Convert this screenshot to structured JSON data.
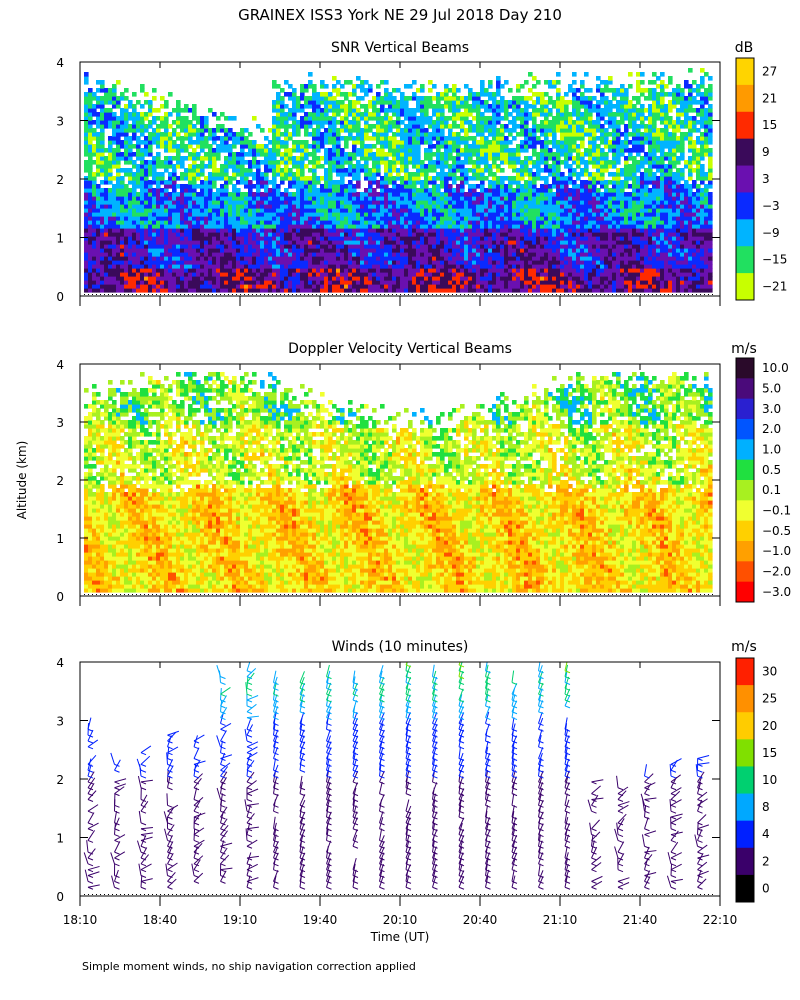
{
  "figure": {
    "title": "GRAINEX ISS3 York NE  29 Jul 2018 Day 210",
    "ylabel": "Altitude (km)",
    "xlabel": "Time (UT)",
    "footnote": "Simple moment winds, no ship navigation correction applied"
  },
  "chart_data": [
    {
      "type": "heatmap",
      "title": "SNR Vertical Beams",
      "xlabel": "Time (UT)",
      "ylabel": "Altitude (km)",
      "x_ticks": [
        "18:10",
        "18:40",
        "19:10",
        "19:40",
        "20:10",
        "20:40",
        "21:10",
        "21:40",
        "22:10"
      ],
      "y_ticks": [
        "0",
        "1",
        "2",
        "3",
        "4"
      ],
      "ylim": [
        0,
        4
      ],
      "colorbar": {
        "unit": "dB",
        "labels": [
          "27",
          "21",
          "15",
          "9",
          "3",
          "−3",
          "−9",
          "−15",
          "−21"
        ],
        "colors": [
          "#ffd400",
          "#ff9a00",
          "#ff2a00",
          "#3a0a5a",
          "#6a10b0",
          "#0a2aff",
          "#00b4ff",
          "#21e060",
          "#c8ff00"
        ]
      }
    },
    {
      "type": "heatmap",
      "title": "Doppler Velocity Vertical Beams",
      "xlabel": "Time (UT)",
      "ylabel": "Altitude (km)",
      "x_ticks": [
        "18:10",
        "18:40",
        "19:10",
        "19:40",
        "20:10",
        "20:40",
        "21:10",
        "21:40",
        "22:10"
      ],
      "y_ticks": [
        "0",
        "1",
        "2",
        "3",
        "4"
      ],
      "ylim": [
        0,
        4
      ],
      "colorbar": {
        "unit": "m/s",
        "labels": [
          "10.0",
          "5.0",
          "3.0",
          "2.0",
          "1.0",
          "0.5",
          "0.1",
          "−0.1",
          "−0.5",
          "−1.0",
          "−2.0",
          "−3.0"
        ],
        "colors": [
          "#2a0a2a",
          "#4a0a7a",
          "#2a20d0",
          "#0055ff",
          "#00b0ff",
          "#20e040",
          "#a8f020",
          "#f0ff30",
          "#ffd000",
          "#ffa000",
          "#ff5000",
          "#ff0000"
        ]
      }
    },
    {
      "type": "scatter",
      "title": "Winds (10 minutes)",
      "xlabel": "Time (UT)",
      "ylabel": "Altitude (km)",
      "x_ticks": [
        "18:10",
        "18:40",
        "19:10",
        "19:40",
        "20:10",
        "20:40",
        "21:10",
        "21:40",
        "22:10"
      ],
      "y_ticks": [
        "0",
        "1",
        "2",
        "3",
        "4"
      ],
      "ylim": [
        0,
        4
      ],
      "colorbar": {
        "unit": "m/s",
        "labels": [
          "30",
          "25",
          "20",
          "15",
          "10",
          "8",
          "4",
          "2",
          "0"
        ],
        "colors": [
          "#ff2000",
          "#ff9000",
          "#ffcc00",
          "#80e000",
          "#00d070",
          "#00a8ff",
          "#0020ff",
          "#3a006a",
          "#000000"
        ]
      }
    }
  ]
}
